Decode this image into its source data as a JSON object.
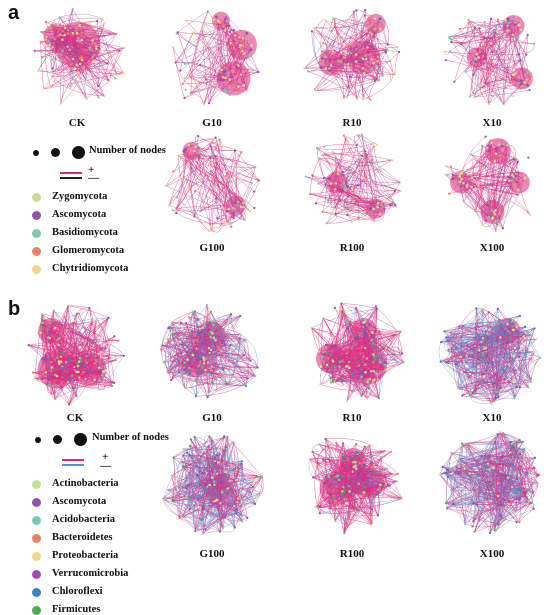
{
  "panel_a": {
    "letter": "a",
    "networks": [
      "CK",
      "G10",
      "R10",
      "X10",
      "G100",
      "R100",
      "X100"
    ],
    "legend": {
      "size_label": "Number of nodes",
      "positive_sign": "+",
      "negative_sign": "—",
      "positive_color": "#e0287a",
      "negative_color": "#222222",
      "phyla": [
        {
          "name": "Zygomycota",
          "color": "#c8dc9a"
        },
        {
          "name": "Ascomycota",
          "color": "#8f52a8"
        },
        {
          "name": "Basidiomycota",
          "color": "#7fc6b4"
        },
        {
          "name": "Glomeromycota",
          "color": "#e87f6b"
        },
        {
          "name": "Chytridiomycota",
          "color": "#f2d48a"
        }
      ]
    }
  },
  "panel_b": {
    "letter": "b",
    "networks": [
      "CK",
      "G10",
      "R10",
      "X10",
      "G100",
      "R100",
      "X100"
    ],
    "legend": {
      "size_label": "Number of nodes",
      "positive_sign": "+",
      "negative_sign": "—",
      "positive_color": "#e0287a",
      "negative_color": "#5b8fd0",
      "phyla": [
        {
          "name": "Actinobacteria",
          "color": "#c8dc9a"
        },
        {
          "name": "Ascomycota",
          "color": "#8f52a8"
        },
        {
          "name": "Acidobacteria",
          "color": "#7fc6b4"
        },
        {
          "name": "Bacteroidetes",
          "color": "#e87f6b"
        },
        {
          "name": "Proteobacteria",
          "color": "#f2d48a"
        },
        {
          "name": "Verrucomicrobia",
          "color": "#9b4fb0"
        },
        {
          "name": "Chloroflexi",
          "color": "#3f7fc4"
        },
        {
          "name": "Firmicutes",
          "color": "#4daa57"
        }
      ]
    }
  }
}
